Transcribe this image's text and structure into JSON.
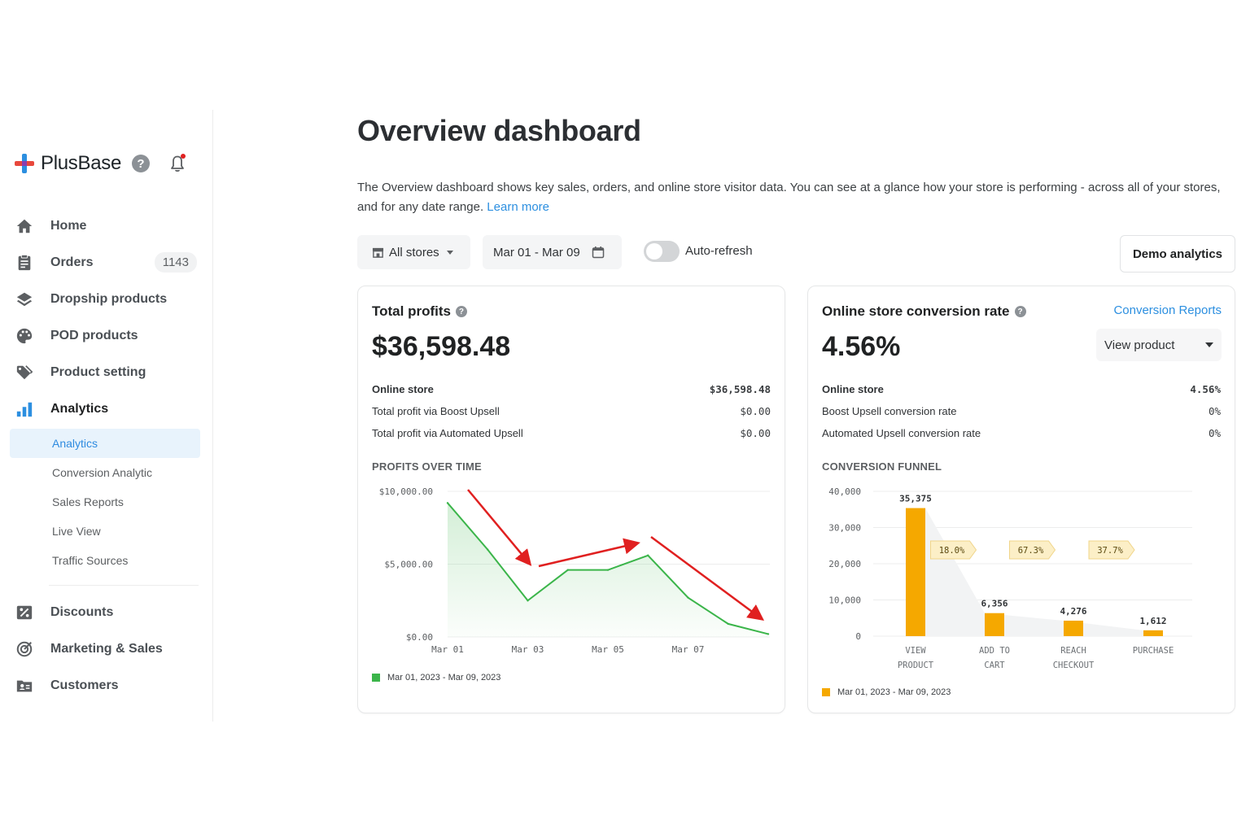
{
  "brand": {
    "name": "PlusBase"
  },
  "nav": {
    "items": [
      {
        "key": "home",
        "label": "Home",
        "icon": "home-icon"
      },
      {
        "key": "orders",
        "label": "Orders",
        "badge": "1143",
        "icon": "clipboard-icon"
      },
      {
        "key": "dropship",
        "label": "Dropship products",
        "icon": "layers-icon"
      },
      {
        "key": "pod",
        "label": "POD products",
        "icon": "palette-icon"
      },
      {
        "key": "product-setting",
        "label": "Product setting",
        "icon": "tag-icon"
      },
      {
        "key": "analytics",
        "label": "Analytics",
        "icon": "bar-chart-icon"
      }
    ],
    "analytics_sub": [
      "Analytics",
      "Conversion Analytic",
      "Sales Reports",
      "Live View",
      "Traffic Sources"
    ],
    "bottom_items": [
      {
        "key": "discounts",
        "label": "Discounts",
        "icon": "discount-icon"
      },
      {
        "key": "marketing",
        "label": "Marketing & Sales",
        "icon": "target-icon"
      },
      {
        "key": "customers",
        "label": "Customers",
        "icon": "customers-icon"
      }
    ]
  },
  "page": {
    "title": "Overview dashboard",
    "description": "The Overview dashboard shows key sales, orders, and online store visitor data. You can see at a glance how your store is performing - across all of your stores, and for any date range.",
    "learn_more": "Learn more"
  },
  "filters": {
    "stores": "All stores",
    "date_range": "Mar 01 - Mar 09",
    "auto_refresh_label": "Auto-refresh",
    "auto_refresh_on": false,
    "demo_button": "Demo analytics"
  },
  "profits_card": {
    "title": "Total profits",
    "value": "$36,598.48",
    "rows": [
      {
        "label": "Online store",
        "value": "$36,598.48"
      },
      {
        "label": "Total profit via Boost Upsell",
        "value": "$0.00"
      },
      {
        "label": "Total profit via Automated Upsell",
        "value": "$0.00"
      }
    ],
    "section_label": "PROFITS OVER TIME",
    "legend": "Mar 01, 2023 - Mar 09, 2023"
  },
  "conversion_card": {
    "title": "Online store conversion rate",
    "link": "Conversion Reports",
    "value": "4.56%",
    "select_value": "View product",
    "rows": [
      {
        "label": "Online store",
        "value": "4.56%"
      },
      {
        "label": "Boost Upsell conversion rate",
        "value": "0%"
      },
      {
        "label": "Automated Upsell conversion rate",
        "value": "0%"
      }
    ],
    "section_label": "CONVERSION FUNNEL",
    "legend": "Mar 01, 2023 - Mar 09, 2023"
  },
  "chart_data": [
    {
      "type": "area",
      "title": "PROFITS OVER TIME",
      "x": [
        "Mar 01",
        "Mar 02",
        "Mar 03",
        "Mar 04",
        "Mar 05",
        "Mar 06",
        "Mar 07",
        "Mar 08",
        "Mar 09"
      ],
      "x_tick_labels": [
        "Mar 01",
        "Mar 03",
        "Mar 05",
        "Mar 07"
      ],
      "series": [
        {
          "values": [
            9200,
            6000,
            2500,
            4600,
            4600,
            5600,
            2700,
            900,
            200
          ],
          "color": "#3bb54a"
        }
      ],
      "y_tick_labels": [
        "$10,000.00",
        "$5,000.00",
        "$0.00"
      ],
      "ylim": [
        0,
        10000
      ],
      "grid": true,
      "annotation_arrows_color": "#e02020"
    },
    {
      "type": "bar",
      "title": "CONVERSION FUNNEL",
      "categories": [
        [
          "VIEW",
          "PRODUCT"
        ],
        [
          "ADD TO",
          "CART"
        ],
        [
          "REACH",
          "CHECKOUT"
        ],
        [
          "PURCHASE"
        ]
      ],
      "values": [
        35375,
        6356,
        4276,
        1612
      ],
      "value_labels": [
        "35,375",
        "6,356",
        "4,276",
        "1,612"
      ],
      "step_rates": [
        "18.0%",
        "67.3%",
        "37.7%"
      ],
      "y_tick_labels": [
        "40,000",
        "30,000",
        "20,000",
        "10,000",
        "0"
      ],
      "ylim": [
        0,
        40000
      ],
      "grid": true,
      "color": "#f5a800"
    }
  ],
  "colors": {
    "accent": "#2c8fe0",
    "profit_line": "#3bb54a",
    "funnel_bar": "#f5a800",
    "arrow": "#e02020"
  }
}
